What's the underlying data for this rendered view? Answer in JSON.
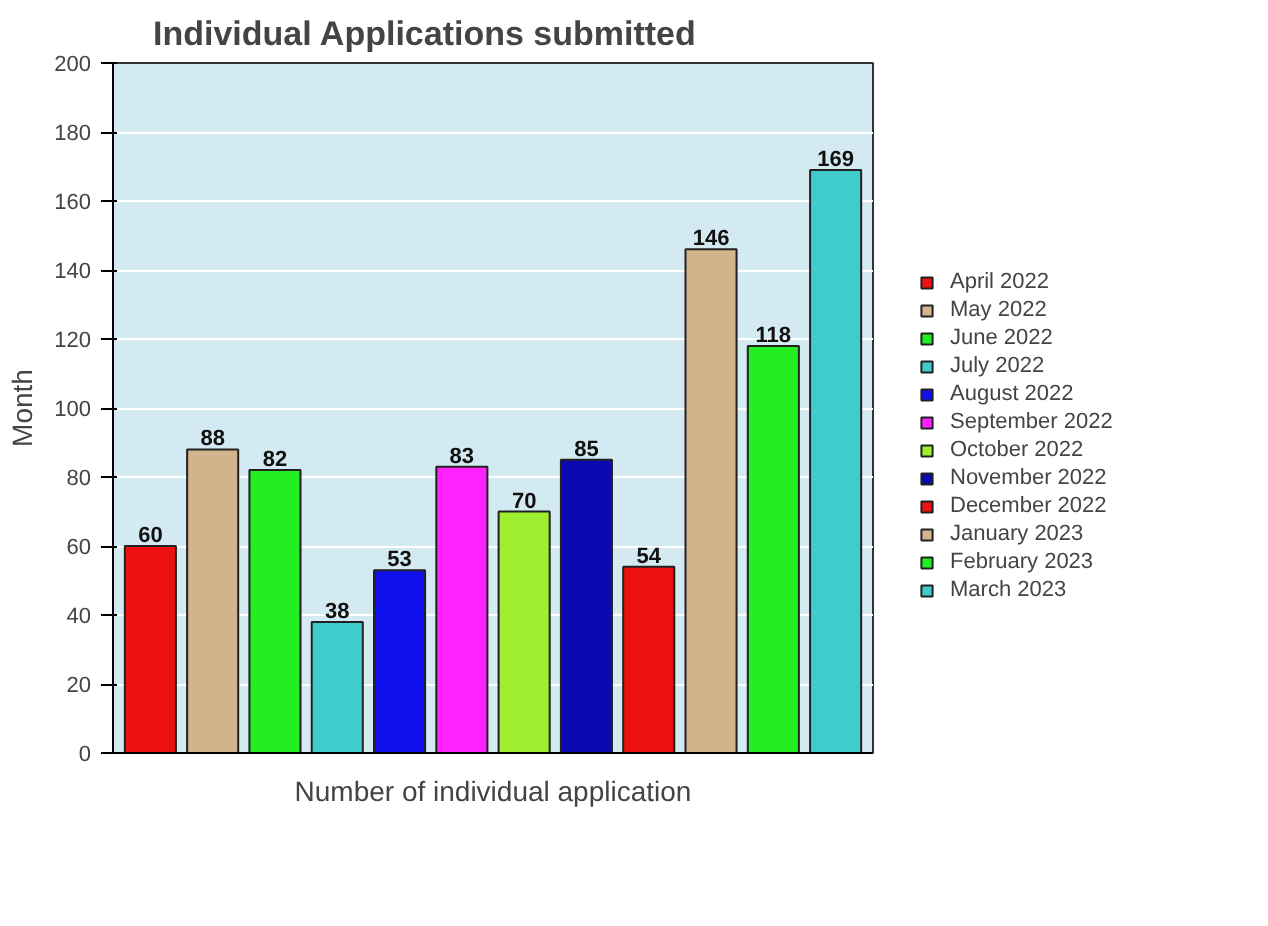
{
  "chart_data": {
    "type": "bar",
    "title": "Individual Applications submitted",
    "xlabel": "Number of individual application",
    "ylabel": "Month",
    "categories": [
      null,
      null,
      null,
      null,
      null,
      null,
      null,
      null,
      null,
      null,
      null,
      null
    ],
    "series": [
      {
        "name": "April 2022",
        "color": "#ee1111",
        "values": [
          60,
          null,
          null,
          null,
          null,
          null,
          null,
          null,
          null,
          null,
          null,
          null
        ]
      },
      {
        "name": "May 2022",
        "color": "#d2b48c",
        "values": [
          null,
          88,
          null,
          null,
          null,
          null,
          null,
          null,
          null,
          null,
          null,
          null
        ]
      },
      {
        "name": "June 2022",
        "color": "#22ee22",
        "values": [
          null,
          null,
          82,
          null,
          null,
          null,
          null,
          null,
          null,
          null,
          null,
          null
        ]
      },
      {
        "name": "July 2022",
        "color": "#40cccc",
        "values": [
          null,
          null,
          null,
          38,
          null,
          null,
          null,
          null,
          null,
          null,
          null,
          null
        ]
      },
      {
        "name": "August 2022",
        "color": "#1010ee",
        "values": [
          null,
          null,
          null,
          null,
          53,
          null,
          null,
          null,
          null,
          null,
          null,
          null
        ]
      },
      {
        "name": "September 2022",
        "color": "#ff22ff",
        "values": [
          null,
          null,
          null,
          null,
          null,
          83,
          null,
          null,
          null,
          null,
          null,
          null
        ]
      },
      {
        "name": "October 2022",
        "color": "#a0ee30",
        "values": [
          null,
          null,
          null,
          null,
          null,
          null,
          70,
          null,
          null,
          null,
          null,
          null
        ]
      },
      {
        "name": "November 2022",
        "color": "#0a0ab0",
        "values": [
          null,
          null,
          null,
          null,
          null,
          null,
          null,
          85,
          null,
          null,
          null,
          null
        ]
      },
      {
        "name": "December 2022",
        "color": "#ee1111",
        "values": [
          null,
          null,
          null,
          null,
          null,
          null,
          null,
          null,
          54,
          null,
          null,
          null
        ]
      },
      {
        "name": "January 2023",
        "color": "#d2b48c",
        "values": [
          null,
          null,
          null,
          null,
          null,
          null,
          null,
          null,
          null,
          146,
          null,
          null
        ]
      },
      {
        "name": "February 2023",
        "color": "#22ee22",
        "values": [
          null,
          null,
          null,
          null,
          null,
          null,
          null,
          null,
          null,
          null,
          118,
          null
        ]
      },
      {
        "name": "March 2023",
        "color": "#40cccc",
        "values": [
          null,
          null,
          null,
          null,
          null,
          null,
          null,
          null,
          null,
          null,
          null,
          169
        ]
      }
    ],
    "ylim": [
      0,
      200
    ],
    "yticks": [
      0,
      20,
      40,
      60,
      80,
      100,
      120,
      140,
      160,
      180,
      200
    ],
    "grid": "y",
    "legend": "right",
    "data_labels": true,
    "tick_labels": "y"
  }
}
